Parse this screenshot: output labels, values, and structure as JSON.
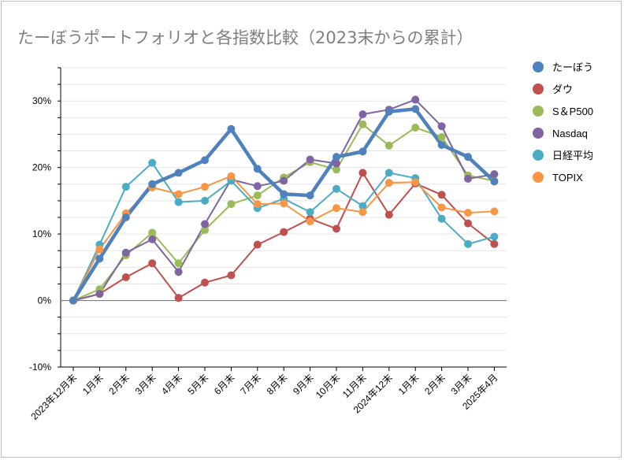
{
  "chart_data": {
    "type": "line",
    "title": "たーぼうポートフォリオと各指数比較（2023末からの累計）",
    "xlabel": "",
    "ylabel": "",
    "categories": [
      "2023年12月末",
      "1月末",
      "2月末",
      "3月末",
      "4月末",
      "5月末",
      "6月末",
      "7月末",
      "8月末",
      "9月末",
      "10月末",
      "11月末",
      "2024年12末",
      "1月末",
      "2月末",
      "3月末",
      "2025年4月"
    ],
    "ylim": [
      -10,
      35
    ],
    "yticks": [
      -10,
      0,
      10,
      20,
      30
    ],
    "ytick_labels": [
      "-10%",
      "0%",
      "10%",
      "20%",
      "30%"
    ],
    "grid": true,
    "legend_position": "right",
    "series": [
      {
        "name": "たーぼう",
        "color": "#4F81BD",
        "thick": true,
        "values": [
          0,
          6.3,
          12.5,
          17.5,
          19.2,
          21.1,
          25.8,
          19.8,
          16.0,
          15.8,
          21.6,
          22.4,
          28.4,
          28.8,
          23.4,
          21.6,
          17.9
        ]
      },
      {
        "name": "ダウ",
        "color": "#C0504D",
        "thick": false,
        "values": [
          0,
          1.0,
          3.5,
          5.6,
          0.4,
          2.7,
          3.8,
          8.4,
          10.3,
          12.3,
          10.8,
          19.2,
          12.9,
          17.6,
          15.9,
          11.6,
          8.5
        ]
      },
      {
        "name": "S＆P500",
        "color": "#9BBB59",
        "thick": false,
        "values": [
          0,
          1.7,
          6.8,
          10.2,
          5.6,
          10.6,
          14.5,
          15.8,
          18.5,
          20.8,
          19.7,
          26.5,
          23.3,
          26.0,
          24.6,
          18.8,
          18.0
        ]
      },
      {
        "name": "Nasdaq",
        "color": "#8064A2",
        "thick": false,
        "values": [
          0,
          1.0,
          7.2,
          9.2,
          4.3,
          11.5,
          18.2,
          17.2,
          18.0,
          21.2,
          20.6,
          28.0,
          28.7,
          30.2,
          26.2,
          18.3,
          19.0
        ]
      },
      {
        "name": "日経平均",
        "color": "#4BACC6",
        "thick": false,
        "values": [
          0,
          8.4,
          17.1,
          20.7,
          14.8,
          15.0,
          18.0,
          13.9,
          15.3,
          13.3,
          16.8,
          14.2,
          19.2,
          18.4,
          12.3,
          8.5,
          9.6
        ]
      },
      {
        "name": "TOPIX",
        "color": "#F79646",
        "thick": false,
        "values": [
          0,
          7.7,
          13.1,
          17.0,
          16.0,
          17.1,
          18.7,
          14.5,
          14.6,
          11.9,
          13.9,
          13.3,
          17.7,
          17.8,
          14.0,
          13.2,
          13.4
        ]
      }
    ]
  }
}
